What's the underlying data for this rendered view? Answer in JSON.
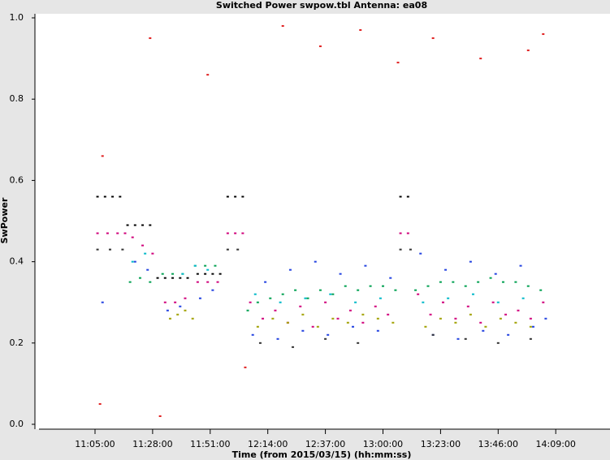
{
  "chart_data": {
    "type": "scatter",
    "title": "Switched Power  swpow.tbl   Antenna: ea08",
    "x_label": "Time (from 2015/03/15) (hh:mm:ss)",
    "y_label": "SwPower",
    "xlim": [
      "10:41:00",
      "14:30:40"
    ],
    "xticks": [
      "11:05:00",
      "11:28:00",
      "11:51:00",
      "12:14:00",
      "12:37:00",
      "13:00:00",
      "13:23:00",
      "13:46:00",
      "14:09:00"
    ],
    "ylim": [
      0,
      1
    ],
    "yticks": [
      {
        "value": 0,
        "label": "0.0"
      },
      {
        "value": 0.2,
        "label": "0.2"
      },
      {
        "value": 0.4,
        "label": "0.4"
      },
      {
        "value": 0.6,
        "label": "0.6"
      },
      {
        "value": 0.8,
        "label": "0.8"
      },
      {
        "value": 1,
        "label": "1.0"
      }
    ],
    "series": [
      {
        "color": "#000000",
        "x": [
          "11:06:00",
          "11:09:00",
          "11:12:00",
          "11:15:00",
          "11:18:00",
          "11:21:00",
          "11:24:00",
          "11:27:00",
          "11:30:00",
          "11:33:00",
          "11:36:00",
          "11:39:00",
          "11:42:00",
          "11:46:00",
          "11:49:00",
          "11:52:00",
          "11:55:00",
          "11:58:00",
          "12:01:00",
          "12:04:00",
          "13:07:00",
          "13:10:00"
        ],
        "values": [
          0.56,
          0.56,
          0.56,
          0.56,
          0.49,
          0.49,
          0.49,
          0.49,
          0.36,
          0.36,
          0.36,
          0.36,
          0.36,
          0.37,
          0.37,
          0.37,
          0.37,
          0.56,
          0.56,
          0.56,
          0.56,
          0.56
        ]
      },
      {
        "color": "#d0007a",
        "x": [
          "11:06:00",
          "11:10:00",
          "11:14:00",
          "11:17:00",
          "11:20:00",
          "11:24:00",
          "11:28:00",
          "11:33:00",
          "11:37:00",
          "11:41:00",
          "11:46:00",
          "11:50:00",
          "11:54:00",
          "11:58:00",
          "12:01:00",
          "12:04:00",
          "12:07:00",
          "12:12:00",
          "12:17:00",
          "12:22:00",
          "12:27:00",
          "12:32:00",
          "12:37:00",
          "12:42:00",
          "12:47:00",
          "12:52:00",
          "12:57:00",
          "13:02:00",
          "13:07:00",
          "13:10:00",
          "13:14:00",
          "13:19:00",
          "13:24:00",
          "13:29:00",
          "13:34:00",
          "13:39:00",
          "13:44:00",
          "13:49:00",
          "13:54:00",
          "13:59:00",
          "14:04:00"
        ],
        "values": [
          0.47,
          0.47,
          0.47,
          0.47,
          0.46,
          0.44,
          0.42,
          0.3,
          0.3,
          0.31,
          0.35,
          0.35,
          0.35,
          0.47,
          0.47,
          0.47,
          0.3,
          0.26,
          0.28,
          0.25,
          0.29,
          0.24,
          0.3,
          0.26,
          0.28,
          0.25,
          0.29,
          0.27,
          0.47,
          0.47,
          0.32,
          0.27,
          0.3,
          0.26,
          0.29,
          0.25,
          0.3,
          0.27,
          0.28,
          0.26,
          0.3
        ]
      },
      {
        "color": "#00a050",
        "x": [
          "11:19:00",
          "11:23:00",
          "11:27:00",
          "11:32:00",
          "11:36:00",
          "11:40:00",
          "11:45:00",
          "11:49:00",
          "11:53:00",
          "12:06:00",
          "12:10:00",
          "12:15:00",
          "12:20:00",
          "12:25:00",
          "12:30:00",
          "12:35:00",
          "12:40:00",
          "12:45:00",
          "12:50:00",
          "12:55:00",
          "13:00:00",
          "13:05:00",
          "13:13:00",
          "13:18:00",
          "13:23:00",
          "13:28:00",
          "13:33:00",
          "13:38:00",
          "13:43:00",
          "13:48:00",
          "13:53:00",
          "13:58:00",
          "14:03:00"
        ],
        "values": [
          0.35,
          0.36,
          0.35,
          0.37,
          0.37,
          0.37,
          0.39,
          0.39,
          0.39,
          0.28,
          0.3,
          0.31,
          0.32,
          0.33,
          0.31,
          0.33,
          0.32,
          0.34,
          0.33,
          0.34,
          0.34,
          0.33,
          0.33,
          0.34,
          0.35,
          0.35,
          0.34,
          0.35,
          0.36,
          0.35,
          0.35,
          0.34,
          0.33
        ]
      },
      {
        "color": "#2040e0",
        "x": [
          "11:08:00",
          "11:21:00",
          "11:26:00",
          "11:34:00",
          "11:39:00",
          "11:47:00",
          "11:52:00",
          "12:08:00",
          "12:13:00",
          "12:18:00",
          "12:23:00",
          "12:28:00",
          "12:33:00",
          "12:38:00",
          "12:43:00",
          "12:48:00",
          "12:53:00",
          "12:58:00",
          "13:03:00",
          "13:15:00",
          "13:20:00",
          "13:25:00",
          "13:30:00",
          "13:35:00",
          "13:40:00",
          "13:45:00",
          "13:50:00",
          "13:55:00",
          "14:00:00",
          "14:05:00"
        ],
        "values": [
          0.3,
          0.4,
          0.38,
          0.28,
          0.29,
          0.31,
          0.33,
          0.22,
          0.35,
          0.21,
          0.38,
          0.23,
          0.4,
          0.22,
          0.37,
          0.24,
          0.39,
          0.23,
          0.36,
          0.42,
          0.22,
          0.38,
          0.21,
          0.4,
          0.23,
          0.37,
          0.22,
          0.39,
          0.24,
          0.26
        ]
      },
      {
        "color": "#a0a000",
        "x": [
          "11:35:00",
          "11:38:00",
          "11:41:00",
          "11:44:00",
          "12:10:00",
          "12:16:00",
          "12:22:00",
          "12:28:00",
          "12:34:00",
          "12:40:00",
          "12:46:00",
          "12:52:00",
          "12:58:00",
          "13:04:00",
          "13:17:00",
          "13:23:00",
          "13:29:00",
          "13:35:00",
          "13:41:00",
          "13:47:00",
          "13:53:00",
          "13:59:00"
        ],
        "values": [
          0.26,
          0.27,
          0.28,
          0.26,
          0.24,
          0.26,
          0.25,
          0.27,
          0.24,
          0.26,
          0.25,
          0.27,
          0.26,
          0.25,
          0.24,
          0.26,
          0.25,
          0.27,
          0.24,
          0.26,
          0.25,
          0.24
        ]
      },
      {
        "color": "#303030",
        "x": [
          "11:06:00",
          "11:11:00",
          "11:16:00",
          "11:58:00",
          "12:02:00",
          "13:07:00",
          "13:11:00",
          "12:11:00",
          "12:24:00",
          "12:37:00",
          "12:50:00",
          "13:20:00",
          "13:33:00",
          "13:46:00",
          "13:59:00"
        ],
        "values": [
          0.43,
          0.43,
          0.43,
          0.43,
          0.43,
          0.43,
          0.43,
          0.2,
          0.19,
          0.21,
          0.2,
          0.22,
          0.21,
          0.2,
          0.21
        ]
      },
      {
        "color": "#e02020",
        "x": [
          "11:07:00",
          "11:08:00",
          "11:27:00",
          "11:31:00",
          "11:50:00",
          "12:05:00",
          "12:20:00",
          "12:35:00",
          "12:51:00",
          "13:06:00",
          "13:20:00",
          "13:39:00",
          "13:58:00",
          "14:04:00"
        ],
        "values": [
          0.05,
          0.66,
          0.95,
          0.02,
          0.86,
          0.14,
          0.98,
          0.93,
          0.97,
          0.89,
          0.95,
          0.9,
          0.92,
          0.96
        ]
      },
      {
        "color": "#00b8c8",
        "x": [
          "11:20:00",
          "11:25:00",
          "11:40:00",
          "11:45:00",
          "11:50:00",
          "12:09:00",
          "12:19:00",
          "12:29:00",
          "12:39:00",
          "12:49:00",
          "12:59:00",
          "13:16:00",
          "13:26:00",
          "13:36:00",
          "13:46:00",
          "13:56:00"
        ],
        "values": [
          0.4,
          0.42,
          0.37,
          0.39,
          0.38,
          0.32,
          0.3,
          0.31,
          0.32,
          0.3,
          0.31,
          0.3,
          0.31,
          0.32,
          0.3,
          0.31
        ]
      }
    ]
  }
}
